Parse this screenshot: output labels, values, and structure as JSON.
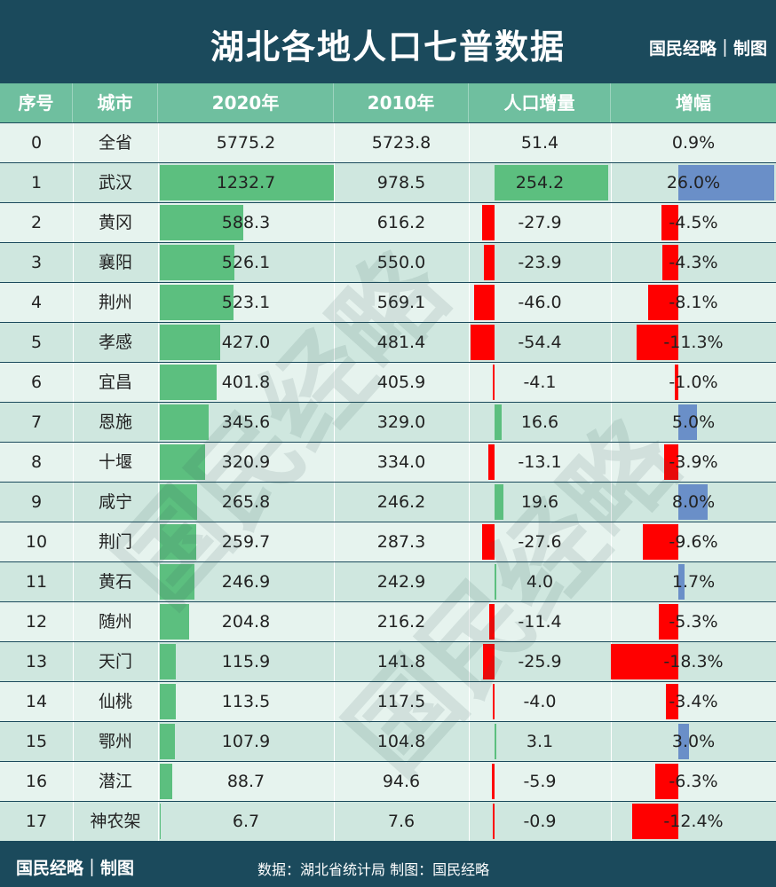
{
  "title": "湖北各地人口七普数据",
  "brand": "国民经略｜制图",
  "footer": {
    "brand": "国民经略｜制图",
    "source": "数据：湖北省统计局  制图：国民经略"
  },
  "watermark": "国民经略",
  "colors": {
    "header_bg": "#1b4a5c",
    "column_header_bg": "#6fbf9f",
    "row_light": "#e6f3ee",
    "row_dark": "#cfe7df",
    "bar_2020": "#5cbf7f",
    "bar_positive_change": "#5cbf7f",
    "bar_negative": "#ff0000",
    "bar_growth_positive": "#6a8fc8"
  },
  "chart_data": {
    "type": "table",
    "columns": [
      "序号",
      "城市",
      "2020年",
      "2010年",
      "人口增量",
      "增幅"
    ],
    "rows": [
      {
        "idx": "0",
        "city": "全省",
        "p2020": "5775.2",
        "p2010": "5723.8",
        "delta": "51.4",
        "growth": "0.9%"
      },
      {
        "idx": "1",
        "city": "武汉",
        "p2020": "1232.7",
        "p2010": "978.5",
        "delta": "254.2",
        "growth": "26.0%"
      },
      {
        "idx": "2",
        "city": "黄冈",
        "p2020": "588.3",
        "p2010": "616.2",
        "delta": "-27.9",
        "growth": "-4.5%"
      },
      {
        "idx": "3",
        "city": "襄阳",
        "p2020": "526.1",
        "p2010": "550.0",
        "delta": "-23.9",
        "growth": "-4.3%"
      },
      {
        "idx": "4",
        "city": "荆州",
        "p2020": "523.1",
        "p2010": "569.1",
        "delta": "-46.0",
        "growth": "-8.1%"
      },
      {
        "idx": "5",
        "city": "孝感",
        "p2020": "427.0",
        "p2010": "481.4",
        "delta": "-54.4",
        "growth": "-11.3%"
      },
      {
        "idx": "6",
        "city": "宜昌",
        "p2020": "401.8",
        "p2010": "405.9",
        "delta": "-4.1",
        "growth": "-1.0%"
      },
      {
        "idx": "7",
        "city": "恩施",
        "p2020": "345.6",
        "p2010": "329.0",
        "delta": "16.6",
        "growth": "5.0%"
      },
      {
        "idx": "8",
        "city": "十堰",
        "p2020": "320.9",
        "p2010": "334.0",
        "delta": "-13.1",
        "growth": "-3.9%"
      },
      {
        "idx": "9",
        "city": "咸宁",
        "p2020": "265.8",
        "p2010": "246.2",
        "delta": "19.6",
        "growth": "8.0%"
      },
      {
        "idx": "10",
        "city": "荆门",
        "p2020": "259.7",
        "p2010": "287.3",
        "delta": "-27.6",
        "growth": "-9.6%"
      },
      {
        "idx": "11",
        "city": "黄石",
        "p2020": "246.9",
        "p2010": "242.9",
        "delta": "4.0",
        "growth": "1.7%"
      },
      {
        "idx": "12",
        "city": "随州",
        "p2020": "204.8",
        "p2010": "216.2",
        "delta": "-11.4",
        "growth": "-5.3%"
      },
      {
        "idx": "13",
        "city": "天门",
        "p2020": "115.9",
        "p2010": "141.8",
        "delta": "-25.9",
        "growth": "-18.3%"
      },
      {
        "idx": "14",
        "city": "仙桃",
        "p2020": "113.5",
        "p2010": "117.5",
        "delta": "-4.0",
        "growth": "-3.4%"
      },
      {
        "idx": "15",
        "city": "鄂州",
        "p2020": "107.9",
        "p2010": "104.8",
        "delta": "3.1",
        "growth": "3.0%"
      },
      {
        "idx": "16",
        "city": "潜江",
        "p2020": "88.7",
        "p2010": "94.6",
        "delta": "-5.9",
        "growth": "-6.3%"
      },
      {
        "idx": "17",
        "city": "神农架",
        "p2020": "6.7",
        "p2010": "7.6",
        "delta": "-0.9",
        "growth": "-12.4%"
      }
    ]
  }
}
